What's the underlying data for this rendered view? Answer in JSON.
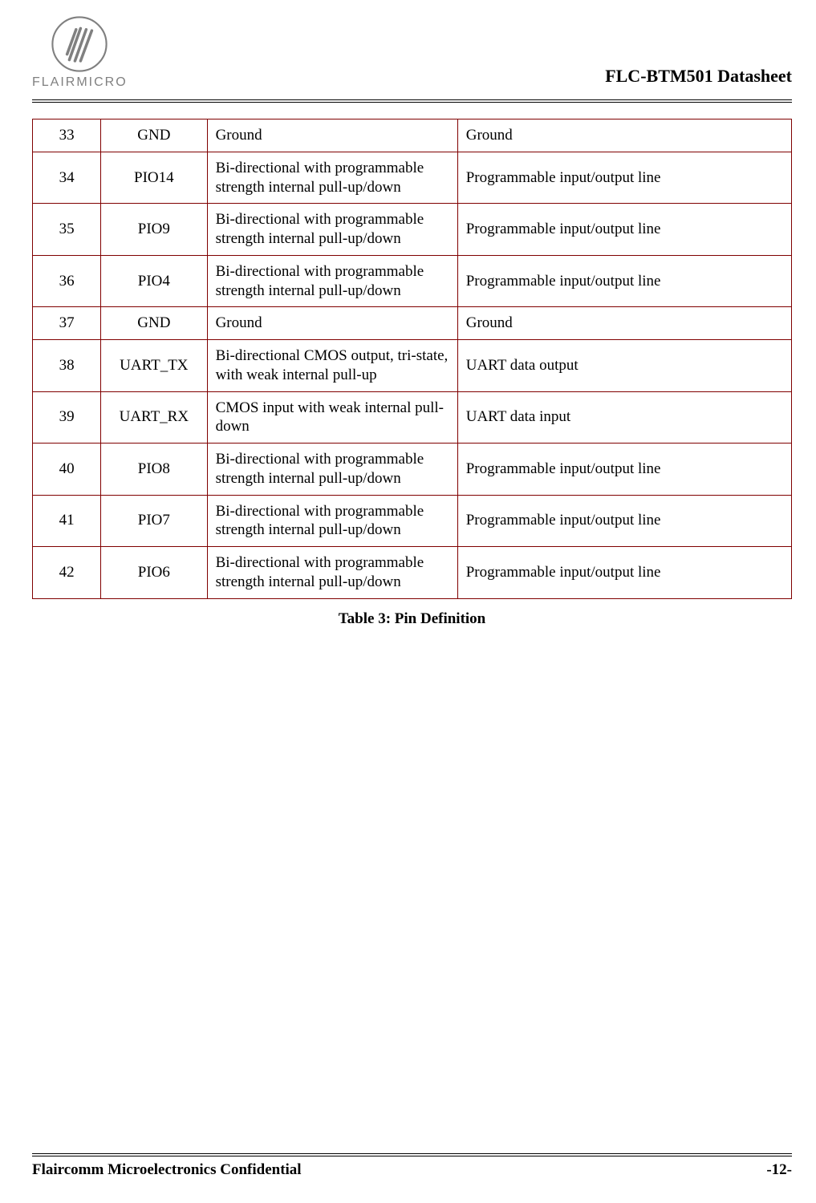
{
  "header": {
    "brand_text": "FLAIRMICRO",
    "doc_title": "FLC-BTM501 Datasheet"
  },
  "colors": {
    "table_border": "#800000",
    "logo_gray": "#808080",
    "text": "#000000",
    "background": "#ffffff"
  },
  "typography": {
    "body_font": "Times New Roman",
    "body_fontsize_pt": 14,
    "title_fontsize_pt": 16,
    "caption_fontsize_pt": 14
  },
  "pin_table": {
    "column_widths_pct": [
      9,
      14,
      33,
      44
    ],
    "column_align": [
      "center",
      "center",
      "left",
      "left"
    ],
    "rows": [
      {
        "pin": "33",
        "name": "GND",
        "type": "Ground",
        "desc": "Ground"
      },
      {
        "pin": "34",
        "name": "PIO14",
        "type": "Bi-directional with programmable strength internal pull-up/down",
        "desc": "Programmable input/output line"
      },
      {
        "pin": "35",
        "name": "PIO9",
        "type": "Bi-directional with programmable strength internal pull-up/down",
        "desc": "Programmable input/output line"
      },
      {
        "pin": "36",
        "name": "PIO4",
        "type": "Bi-directional with programmable strength internal pull-up/down",
        "desc": "Programmable input/output line"
      },
      {
        "pin": "37",
        "name": "GND",
        "type": "Ground",
        "desc": "Ground"
      },
      {
        "pin": "38",
        "name": "UART_TX",
        "type": "Bi-directional CMOS output, tri-state, with weak internal pull-up",
        "desc": "UART data output"
      },
      {
        "pin": "39",
        "name": "UART_RX",
        "type": "CMOS input with weak internal pull-down",
        "desc": "UART data input"
      },
      {
        "pin": "40",
        "name": "PIO8",
        "type": "Bi-directional with programmable strength internal pull-up/down",
        "desc": "Programmable input/output line"
      },
      {
        "pin": "41",
        "name": "PIO7",
        "type": "Bi-directional with programmable strength internal pull-up/down",
        "desc": "Programmable input/output line"
      },
      {
        "pin": "42",
        "name": "PIO6",
        "type": "Bi-directional with programmable strength internal pull-up/down",
        "desc": "Programmable input/output line"
      }
    ]
  },
  "table_caption": "Table 3: Pin Definition",
  "footer": {
    "left": "Flaircomm Microelectronics Confidential",
    "right": "-12-"
  }
}
